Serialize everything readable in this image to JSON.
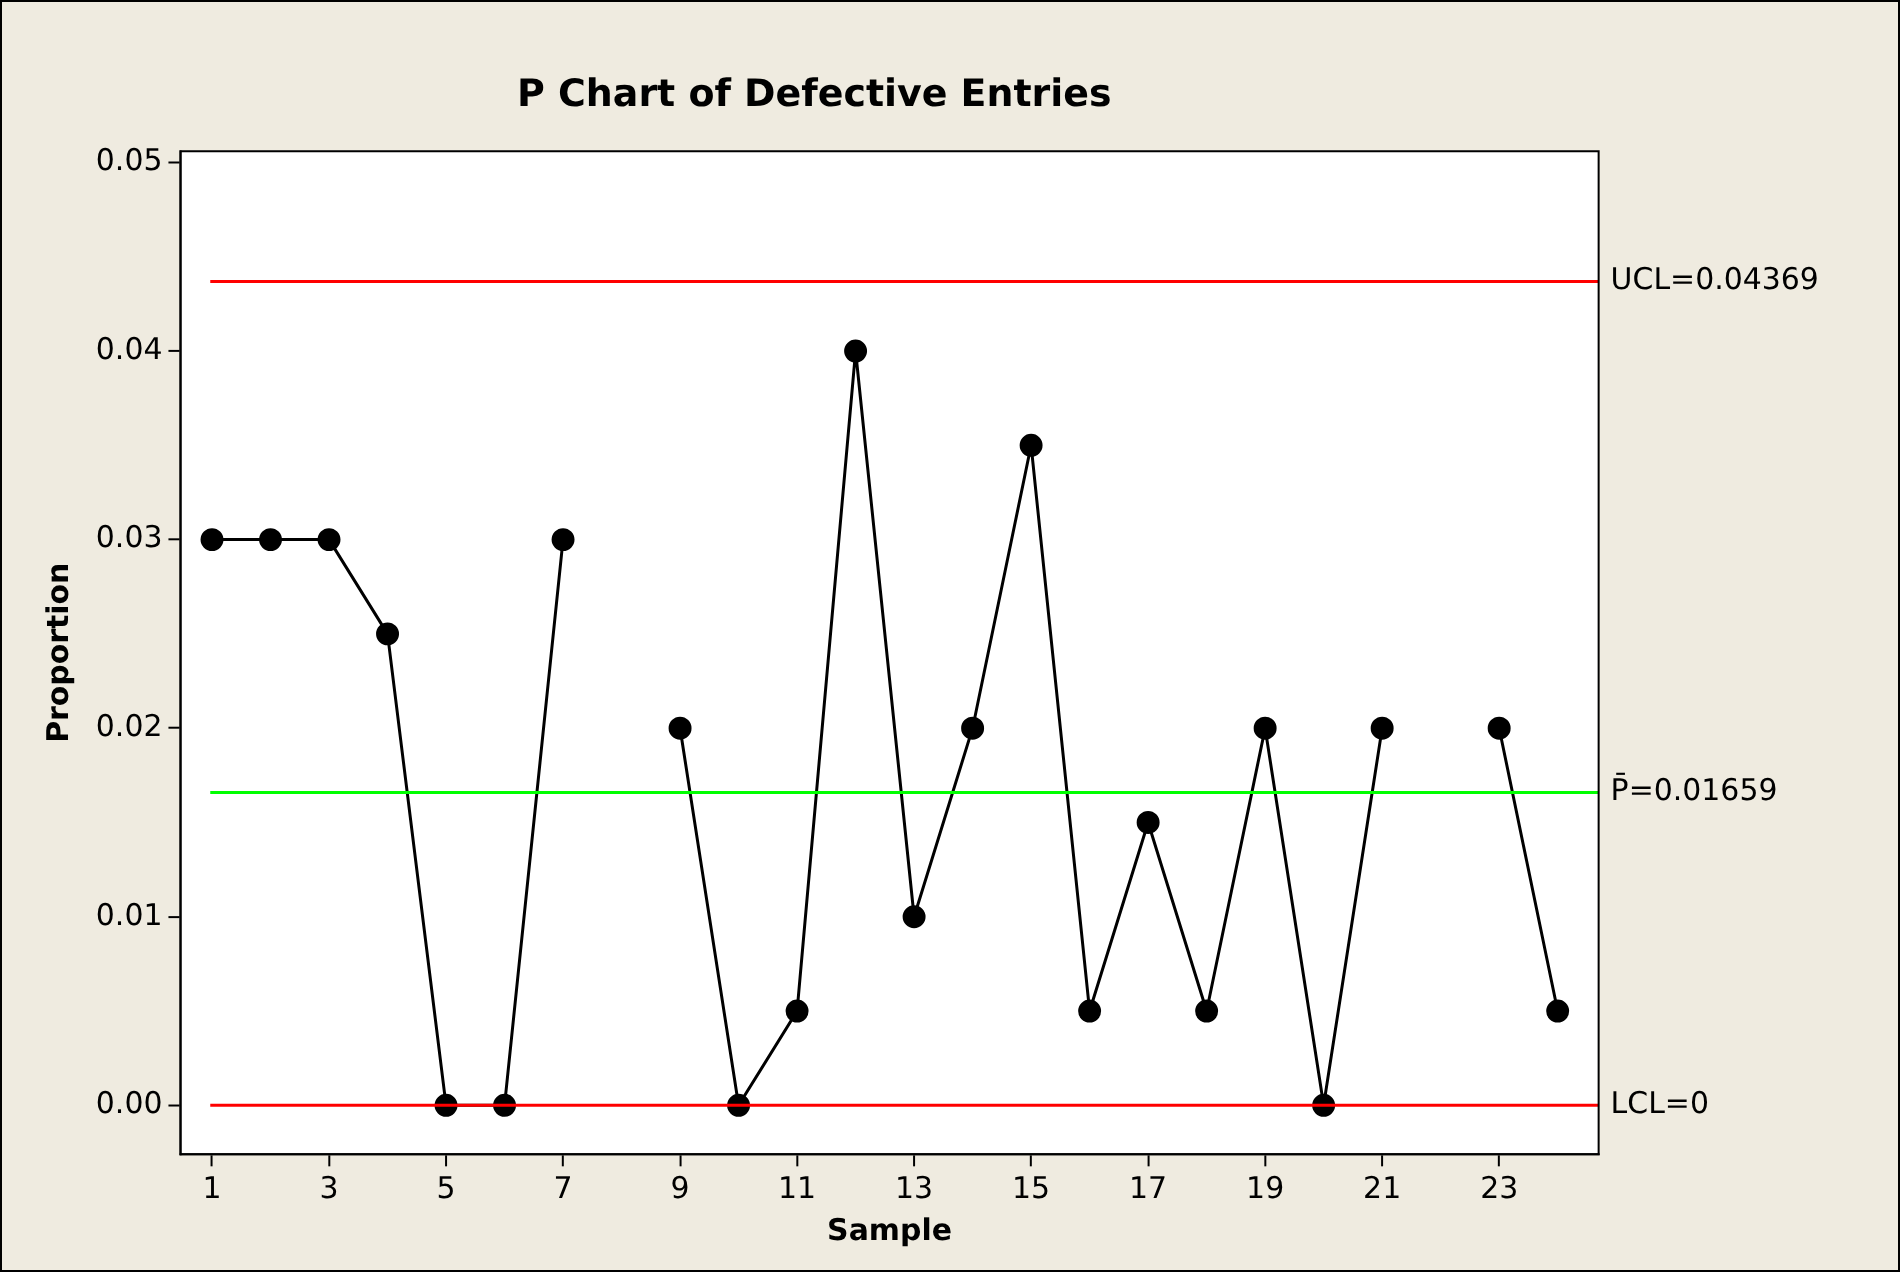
{
  "chart_data": {
    "type": "line",
    "title": "P Chart of Defective Entries",
    "xlabel": "Sample",
    "ylabel": "Proportion",
    "x": [
      1,
      2,
      3,
      4,
      5,
      6,
      7,
      8,
      9,
      10,
      11,
      12,
      13,
      14,
      15,
      16,
      17,
      18,
      19,
      20,
      21,
      22,
      23,
      24
    ],
    "series": [
      {
        "color": "#000000",
        "values": [
          0.03,
          0.03,
          0.03,
          0.025,
          0,
          0,
          0.03,
          null,
          0.02,
          0,
          0.005,
          0.04,
          0.01,
          0.02,
          0.035,
          0.005,
          0.015,
          0.005,
          0.02,
          0,
          0.02,
          null,
          0.02,
          0.005
        ]
      }
    ],
    "xlim": [
      0.46,
      24.7
    ],
    "xticks": [
      1,
      3,
      5,
      7,
      9,
      11,
      13,
      15,
      17,
      19,
      21,
      23
    ],
    "ylim": [
      -0.0026,
      0.0506
    ],
    "yticks": [
      {
        "value": 0,
        "label": "0.00"
      },
      {
        "value": 0.01,
        "label": "0.01"
      },
      {
        "value": 0.02,
        "label": "0.02"
      },
      {
        "value": 0.03,
        "label": "0.03"
      },
      {
        "value": 0.04,
        "label": "0.04"
      },
      {
        "value": 0.05,
        "label": "0.05"
      }
    ],
    "ref_lines": [
      {
        "axis": "y",
        "value": 0.04369,
        "label": "UCL=0.04369",
        "color": "#ff0000"
      },
      {
        "axis": "y",
        "value": 0.01659,
        "label": "P̄=0.01659",
        "color": "#00ff00"
      },
      {
        "axis": "y",
        "value": 0,
        "label": "LCL=0",
        "color": "#ff0000"
      }
    ],
    "marker": "circle",
    "line_style": "solid",
    "grid": false,
    "legend": false
  }
}
